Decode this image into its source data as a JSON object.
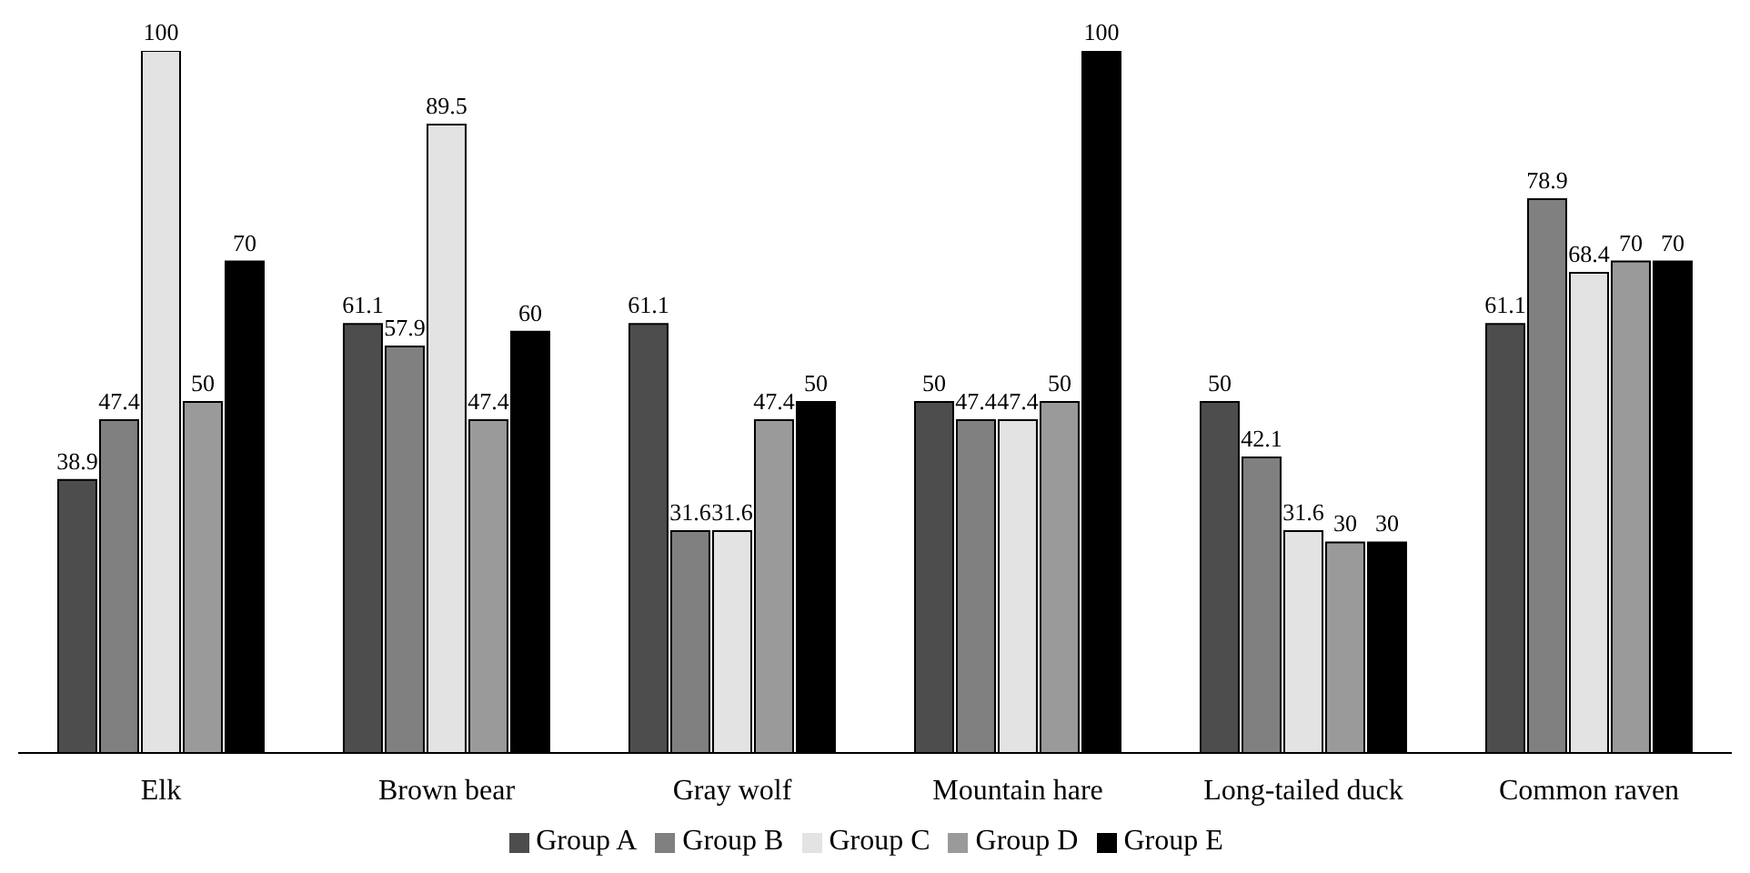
{
  "chart_data": {
    "type": "bar",
    "categories": [
      "Elk",
      "Brown bear",
      "Gray wolf",
      "Mountain hare",
      "Long-tailed duck",
      "Common raven"
    ],
    "series": [
      {
        "name": "Group A",
        "color": "#4d4d4d",
        "values": [
          38.9,
          61.1,
          61.1,
          50,
          50,
          61.1
        ]
      },
      {
        "name": "Group B",
        "color": "#808080",
        "values": [
          47.4,
          57.9,
          31.6,
          47.4,
          42.1,
          78.9
        ]
      },
      {
        "name": "Group C",
        "color": "#e3e3e3",
        "values": [
          100,
          89.5,
          31.6,
          47.4,
          31.6,
          68.4
        ]
      },
      {
        "name": "Group D",
        "color": "#9a9a9a",
        "values": [
          50,
          47.4,
          47.4,
          50,
          30,
          70
        ]
      },
      {
        "name": "Group E",
        "color": "#000000",
        "values": [
          70,
          60,
          50,
          100,
          30,
          70
        ]
      }
    ],
    "data_labels": true,
    "legend": "bottom",
    "grid": false
  }
}
